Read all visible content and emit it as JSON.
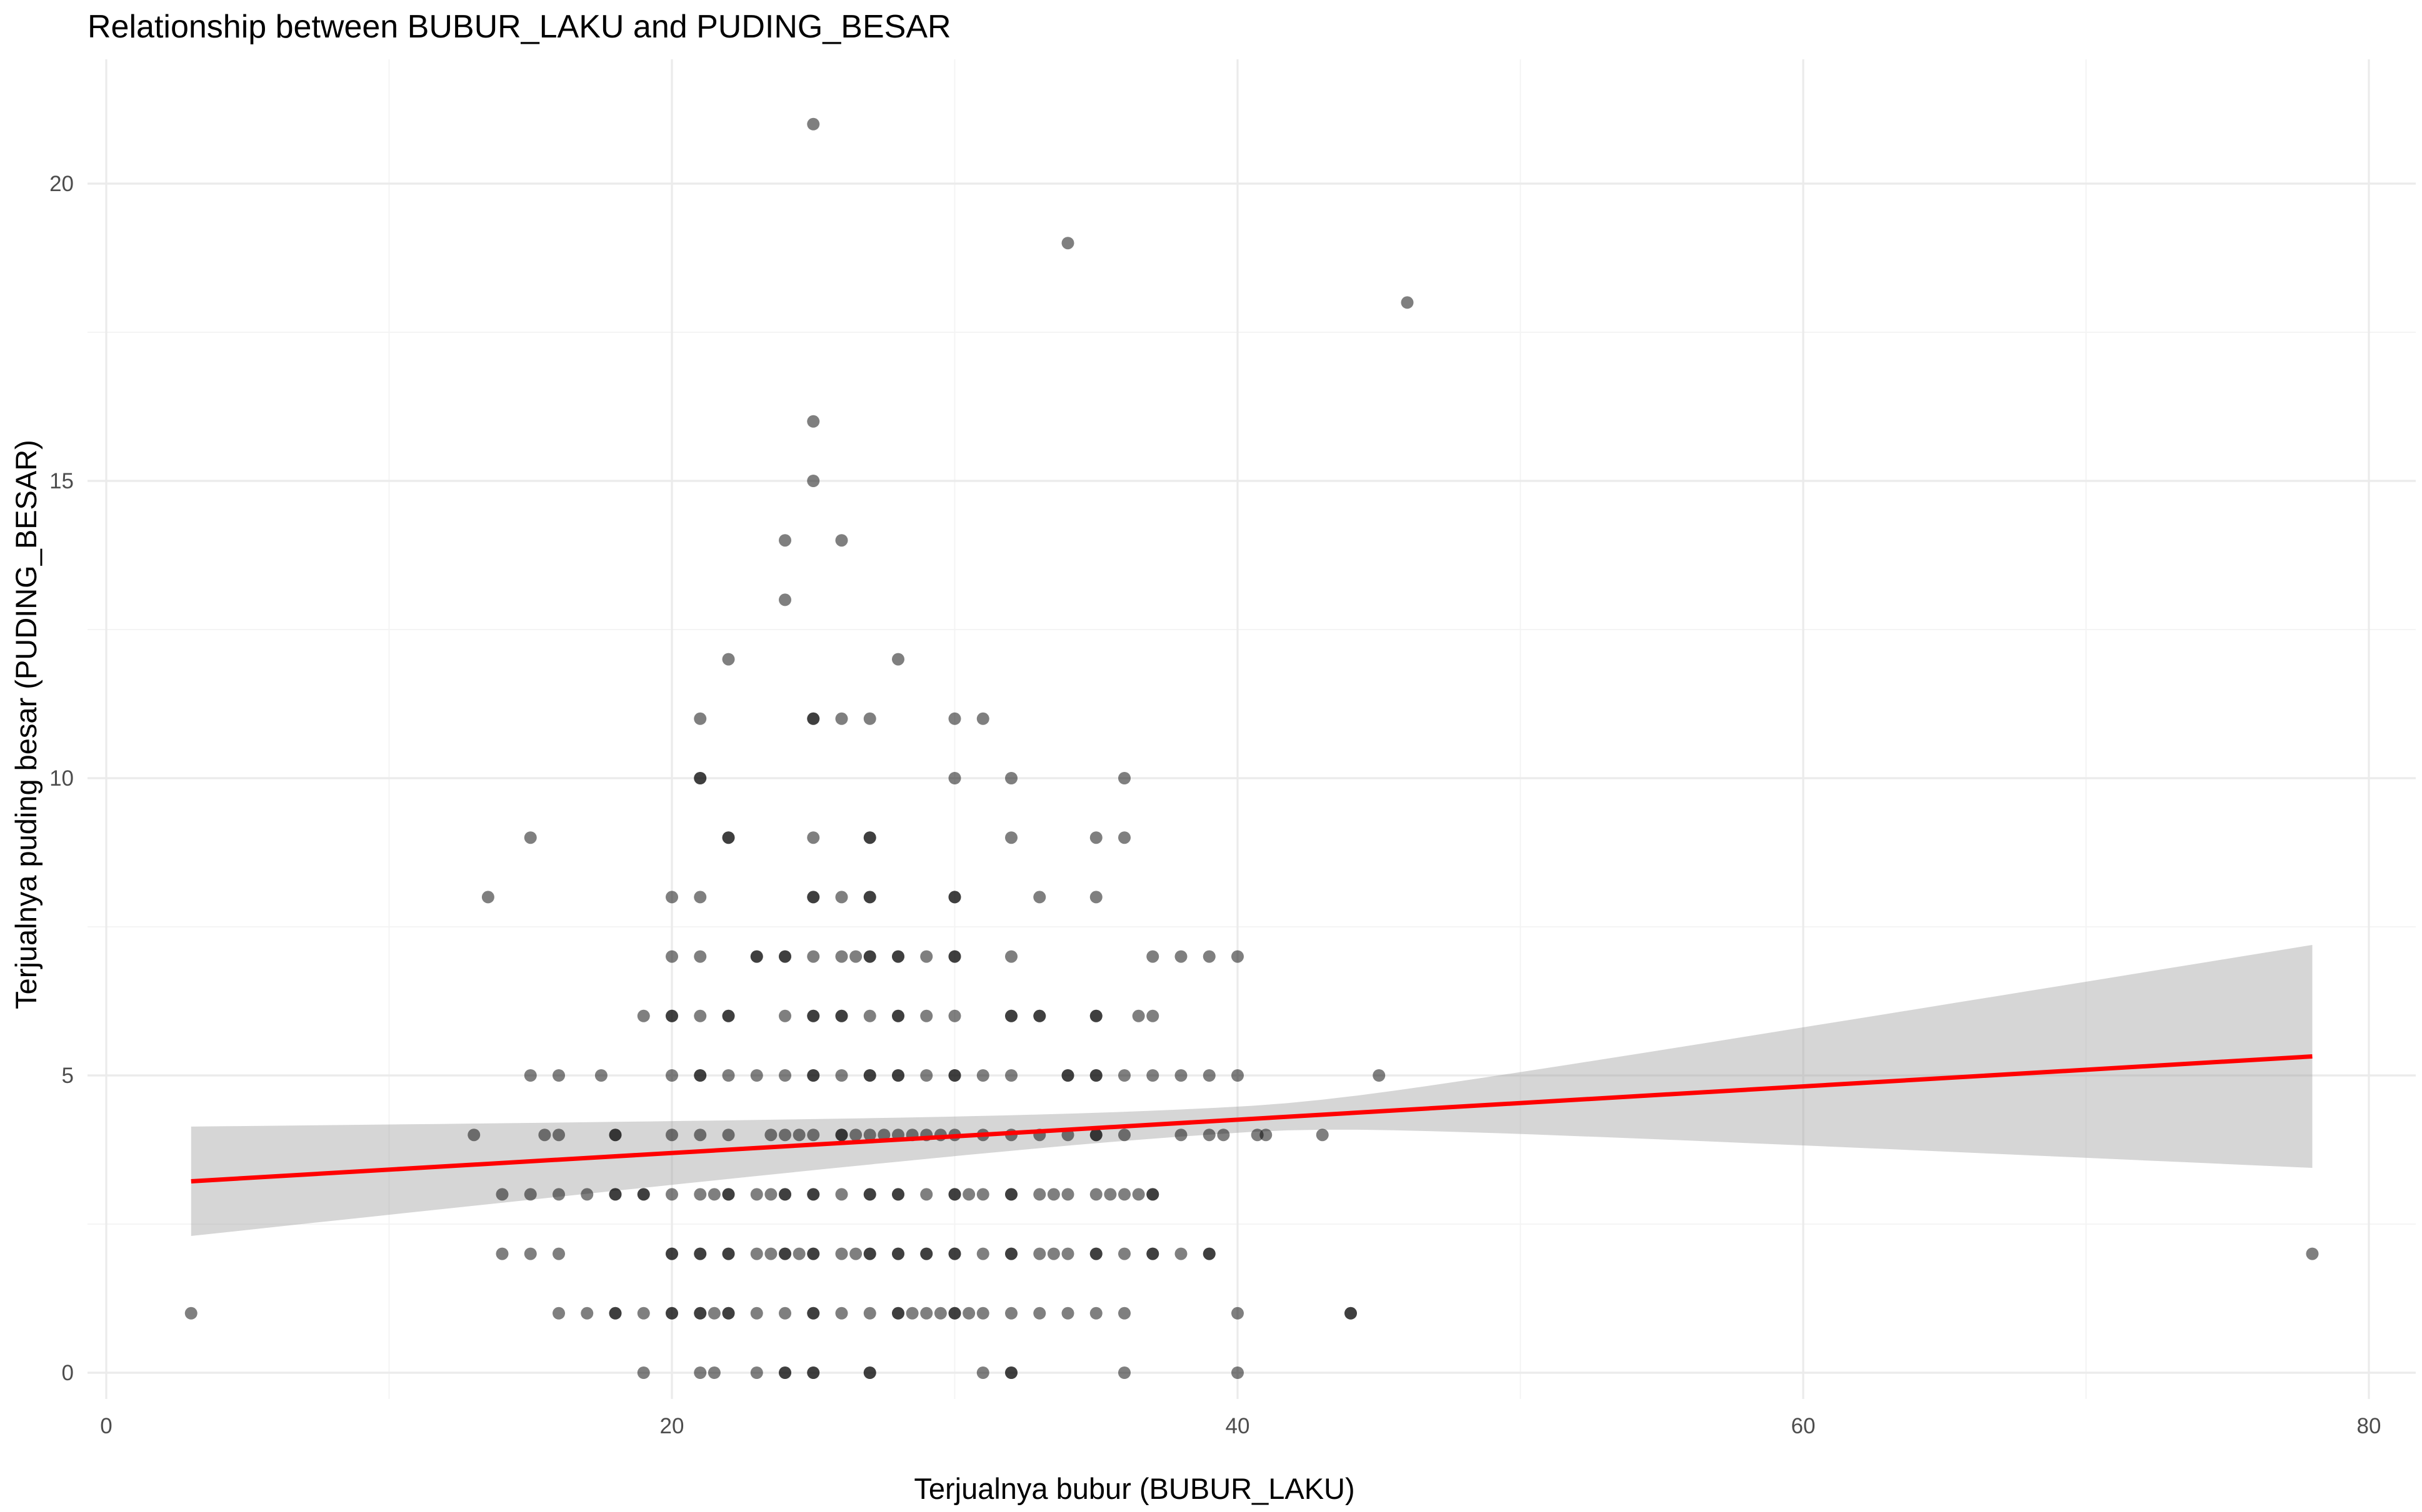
{
  "chart_data": {
    "type": "scatter",
    "title": "Relationship between BUBUR_LAKU and PUDING_BESAR",
    "xlabel": "Terjualnya bubur (BUBUR_LAKU)",
    "ylabel": "Terjualnya puding besar (PUDING_BESAR)",
    "xlim": [
      0,
      80
    ],
    "ylim": [
      0,
      20
    ],
    "x_ticks": [
      0,
      20,
      40,
      60,
      80
    ],
    "y_ticks": [
      0,
      5,
      10,
      15,
      20
    ],
    "x_tick_labels": [
      "0",
      "20",
      "40",
      "60",
      "80"
    ],
    "y_tick_labels": [
      "0",
      "5",
      "10",
      "15",
      "20"
    ],
    "grid": true,
    "theme": "minimal",
    "colors": {
      "point": "#000000",
      "point_opacity": 0.5,
      "trend_line": "#ff0000",
      "confidence_band": "#999999",
      "confidence_band_opacity": 0.4,
      "grid_major": "#ebebeb",
      "grid_minor": "#f3f3f3"
    },
    "series": [
      {
        "type": "scatter",
        "points": [
          [
            3,
            1
          ],
          [
            13,
            4
          ],
          [
            13.5,
            8
          ],
          [
            14,
            2
          ],
          [
            14,
            3
          ],
          [
            15,
            9
          ],
          [
            15,
            5
          ],
          [
            15,
            3
          ],
          [
            15,
            2
          ],
          [
            15.5,
            4
          ],
          [
            16,
            5
          ],
          [
            16,
            4
          ],
          [
            16,
            3
          ],
          [
            16,
            2
          ],
          [
            16,
            1
          ],
          [
            17,
            3
          ],
          [
            17,
            1
          ],
          [
            17.5,
            5
          ],
          [
            18,
            4
          ],
          [
            18,
            4
          ],
          [
            18,
            3
          ],
          [
            18,
            3
          ],
          [
            18,
            1
          ],
          [
            18,
            1
          ],
          [
            19,
            6
          ],
          [
            19,
            3
          ],
          [
            19,
            3
          ],
          [
            19,
            1
          ],
          [
            19,
            0
          ],
          [
            20,
            8
          ],
          [
            20,
            7
          ],
          [
            20,
            6
          ],
          [
            20,
            6
          ],
          [
            20,
            5
          ],
          [
            20,
            4
          ],
          [
            20,
            3
          ],
          [
            20,
            2
          ],
          [
            20,
            2
          ],
          [
            20,
            1
          ],
          [
            20,
            1
          ],
          [
            21,
            11
          ],
          [
            21,
            10
          ],
          [
            21,
            10
          ],
          [
            21,
            8
          ],
          [
            21,
            7
          ],
          [
            21,
            6
          ],
          [
            21,
            5
          ],
          [
            21,
            5
          ],
          [
            21,
            4
          ],
          [
            21,
            3
          ],
          [
            21,
            2
          ],
          [
            21,
            2
          ],
          [
            21,
            1
          ],
          [
            21,
            1
          ],
          [
            21,
            0
          ],
          [
            21.5,
            0
          ],
          [
            21.5,
            3
          ],
          [
            21.5,
            1
          ],
          [
            22,
            12
          ],
          [
            22,
            9
          ],
          [
            22,
            9
          ],
          [
            22,
            6
          ],
          [
            22,
            6
          ],
          [
            22,
            5
          ],
          [
            22,
            4
          ],
          [
            22,
            3
          ],
          [
            22,
            3
          ],
          [
            22,
            2
          ],
          [
            22,
            2
          ],
          [
            22,
            1
          ],
          [
            22,
            1
          ],
          [
            23,
            7
          ],
          [
            23,
            7
          ],
          [
            23,
            5
          ],
          [
            23,
            3
          ],
          [
            23,
            2
          ],
          [
            23,
            1
          ],
          [
            23,
            0
          ],
          [
            23.5,
            4
          ],
          [
            23.5,
            2
          ],
          [
            23.5,
            3
          ],
          [
            24,
            14
          ],
          [
            24,
            13
          ],
          [
            24,
            7
          ],
          [
            24,
            7
          ],
          [
            24,
            6
          ],
          [
            24,
            5
          ],
          [
            24,
            4
          ],
          [
            24,
            3
          ],
          [
            24,
            3
          ],
          [
            24,
            2
          ],
          [
            24,
            2
          ],
          [
            24,
            1
          ],
          [
            24,
            0
          ],
          [
            24,
            0
          ],
          [
            24.5,
            4
          ],
          [
            24.5,
            2
          ],
          [
            25,
            21
          ],
          [
            25,
            16
          ],
          [
            25,
            15
          ],
          [
            25,
            11
          ],
          [
            25,
            11
          ],
          [
            25,
            9
          ],
          [
            25,
            8
          ],
          [
            25,
            8
          ],
          [
            25,
            7
          ],
          [
            25,
            6
          ],
          [
            25,
            6
          ],
          [
            25,
            5
          ],
          [
            25,
            5
          ],
          [
            25,
            4
          ],
          [
            25,
            3
          ],
          [
            25,
            3
          ],
          [
            25,
            2
          ],
          [
            25,
            2
          ],
          [
            25,
            1
          ],
          [
            25,
            1
          ],
          [
            25,
            0
          ],
          [
            25,
            0
          ],
          [
            26,
            14
          ],
          [
            26,
            11
          ],
          [
            26,
            8
          ],
          [
            26,
            7
          ],
          [
            26,
            6
          ],
          [
            26,
            6
          ],
          [
            26,
            5
          ],
          [
            26,
            4
          ],
          [
            26,
            4
          ],
          [
            26,
            3
          ],
          [
            26,
            2
          ],
          [
            26,
            1
          ],
          [
            26.5,
            7
          ],
          [
            26.5,
            4
          ],
          [
            26.5,
            2
          ],
          [
            27,
            11
          ],
          [
            27,
            9
          ],
          [
            27,
            9
          ],
          [
            27,
            8
          ],
          [
            27,
            8
          ],
          [
            27,
            7
          ],
          [
            27,
            7
          ],
          [
            27,
            6
          ],
          [
            27,
            5
          ],
          [
            27,
            5
          ],
          [
            27,
            4
          ],
          [
            27,
            3
          ],
          [
            27,
            3
          ],
          [
            27,
            2
          ],
          [
            27,
            2
          ],
          [
            27,
            1
          ],
          [
            27,
            0
          ],
          [
            27,
            0
          ],
          [
            27.5,
            4
          ],
          [
            28,
            12
          ],
          [
            28,
            7
          ],
          [
            28,
            7
          ],
          [
            28,
            6
          ],
          [
            28,
            6
          ],
          [
            28,
            5
          ],
          [
            28,
            5
          ],
          [
            28,
            4
          ],
          [
            28,
            3
          ],
          [
            28,
            3
          ],
          [
            28,
            2
          ],
          [
            28,
            2
          ],
          [
            28,
            1
          ],
          [
            28,
            1
          ],
          [
            28.5,
            4
          ],
          [
            28.5,
            1
          ],
          [
            29,
            7
          ],
          [
            29,
            6
          ],
          [
            29,
            5
          ],
          [
            29,
            4
          ],
          [
            29,
            3
          ],
          [
            29,
            2
          ],
          [
            29,
            2
          ],
          [
            29,
            1
          ],
          [
            29.5,
            4
          ],
          [
            29.5,
            1
          ],
          [
            30,
            11
          ],
          [
            30,
            10
          ],
          [
            30,
            8
          ],
          [
            30,
            8
          ],
          [
            30,
            7
          ],
          [
            30,
            7
          ],
          [
            30,
            6
          ],
          [
            30,
            5
          ],
          [
            30,
            5
          ],
          [
            30,
            4
          ],
          [
            30,
            3
          ],
          [
            30,
            3
          ],
          [
            30,
            2
          ],
          [
            30,
            2
          ],
          [
            30,
            1
          ],
          [
            30,
            1
          ],
          [
            30.5,
            3
          ],
          [
            30.5,
            1
          ],
          [
            31,
            11
          ],
          [
            31,
            5
          ],
          [
            31,
            4
          ],
          [
            31,
            3
          ],
          [
            31,
            2
          ],
          [
            31,
            1
          ],
          [
            31,
            0
          ],
          [
            32,
            10
          ],
          [
            32,
            9
          ],
          [
            32,
            7
          ],
          [
            32,
            6
          ],
          [
            32,
            6
          ],
          [
            32,
            5
          ],
          [
            32,
            4
          ],
          [
            32,
            3
          ],
          [
            32,
            3
          ],
          [
            32,
            2
          ],
          [
            32,
            2
          ],
          [
            32,
            1
          ],
          [
            32,
            0
          ],
          [
            32,
            0
          ],
          [
            33,
            8
          ],
          [
            33,
            6
          ],
          [
            33,
            6
          ],
          [
            33,
            4
          ],
          [
            33,
            3
          ],
          [
            33,
            2
          ],
          [
            33,
            1
          ],
          [
            33.5,
            3
          ],
          [
            33.5,
            2
          ],
          [
            34,
            19
          ],
          [
            34,
            5
          ],
          [
            34,
            5
          ],
          [
            34,
            4
          ],
          [
            34,
            3
          ],
          [
            34,
            2
          ],
          [
            34,
            1
          ],
          [
            35,
            9
          ],
          [
            35,
            8
          ],
          [
            35,
            6
          ],
          [
            35,
            6
          ],
          [
            35,
            5
          ],
          [
            35,
            5
          ],
          [
            35,
            4
          ],
          [
            35,
            4
          ],
          [
            35,
            3
          ],
          [
            35,
            2
          ],
          [
            35,
            2
          ],
          [
            35,
            1
          ],
          [
            35.5,
            3
          ],
          [
            36,
            10
          ],
          [
            36,
            9
          ],
          [
            36,
            5
          ],
          [
            36,
            4
          ],
          [
            36,
            3
          ],
          [
            36,
            2
          ],
          [
            36,
            1
          ],
          [
            36,
            0
          ],
          [
            36.5,
            6
          ],
          [
            36.5,
            3
          ],
          [
            37,
            7
          ],
          [
            37,
            6
          ],
          [
            37,
            5
          ],
          [
            37,
            3
          ],
          [
            37,
            3
          ],
          [
            37,
            2
          ],
          [
            37,
            2
          ],
          [
            38,
            7
          ],
          [
            38,
            5
          ],
          [
            38,
            4
          ],
          [
            38,
            2
          ],
          [
            39,
            7
          ],
          [
            39,
            5
          ],
          [
            39,
            4
          ],
          [
            39,
            2
          ],
          [
            39,
            2
          ],
          [
            39.5,
            4
          ],
          [
            40,
            7
          ],
          [
            40,
            5
          ],
          [
            40,
            1
          ],
          [
            40,
            0
          ],
          [
            40.7,
            4
          ],
          [
            41,
            4
          ],
          [
            43,
            4
          ],
          [
            44,
            1
          ],
          [
            44,
            1
          ],
          [
            45,
            5
          ],
          [
            46,
            18
          ],
          [
            78,
            2
          ]
        ]
      },
      {
        "type": "line",
        "method": "lm",
        "x": [
          3,
          78
        ],
        "y": [
          3.22,
          5.32
        ],
        "band_lower": [
          2.3,
          3.45
        ],
        "band_upper": [
          4.14,
          7.2
        ]
      }
    ]
  }
}
